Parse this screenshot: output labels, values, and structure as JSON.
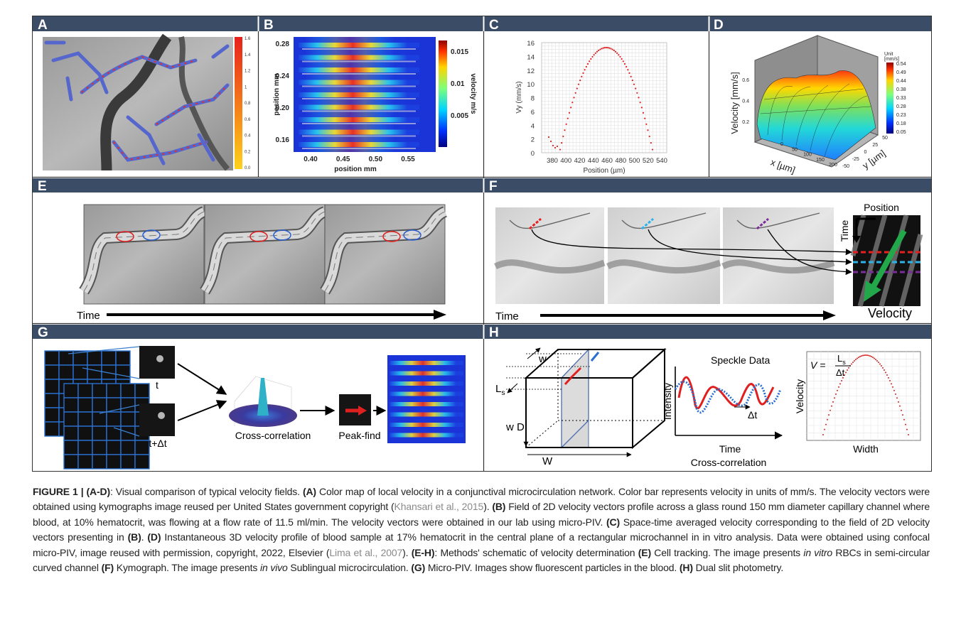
{
  "panel_labels": [
    "A",
    "B",
    "C",
    "D",
    "E",
    "F",
    "G",
    "H"
  ],
  "panel_a": {
    "colorbar_ticks": [
      "1.6",
      "1.4",
      "1.2",
      "1",
      "0.8",
      "0.6",
      "0.4",
      "0.2",
      "0.0"
    ]
  },
  "panel_b": {
    "x_label": "position mm",
    "y_label": "position mm",
    "x_ticks": [
      "0.40",
      "0.45",
      "0.50",
      "0.55"
    ],
    "y_ticks": [
      "0.28",
      "0.24",
      "0.20",
      "0.16"
    ],
    "colorbar_label": "velocity m/s",
    "colorbar_ticks": [
      "0.015",
      "0.01",
      "0.005"
    ]
  },
  "panel_c": {
    "x_label": "Position (µm)",
    "y_label": "Vy (mm/s)",
    "x_ticks": [
      "380",
      "400",
      "420",
      "440",
      "460",
      "480",
      "500",
      "520",
      "540"
    ],
    "y_ticks": [
      "16",
      "14",
      "12",
      "10",
      "8",
      "6",
      "4",
      "2",
      "0"
    ]
  },
  "panel_d": {
    "z_label": "Velocity [mm/s]",
    "x_label": "x [µm]",
    "y_label": "y [µm]",
    "unit_title": "Unit",
    "unit": "[mm/s]",
    "z_ticks": [
      "0.6",
      "0.4",
      "0.2"
    ],
    "x_ticks": [
      "0",
      "50",
      "100",
      "150",
      "200"
    ],
    "y_ticks": [
      "50",
      "25",
      "0",
      "-25",
      "-50"
    ],
    "colorbar_ticks": [
      "0.54",
      "0.49",
      "0.44",
      "0.38",
      "0.33",
      "0.28",
      "0.23",
      "0.18",
      "0.05"
    ]
  },
  "panel_e": {
    "axis_label": "Time"
  },
  "panel_f": {
    "axis_label": "Time",
    "kymo_position": "Position",
    "kymo_time": "Time",
    "kymo_velocity": "Velocity"
  },
  "panel_g": {
    "frame_1": "t",
    "frame_2": "t+Δt",
    "step_1": "Cross-correlation",
    "step_2": "Peak-find"
  },
  "panel_h": {
    "length_main": "L",
    "length_sub": "s",
    "window_1": "w",
    "window_2": "w",
    "depth": "D",
    "width": "W",
    "speckle_title": "Speckle Data",
    "speckle_y": "Intensity",
    "speckle_x": "Time",
    "speckle_caption": "Cross-correlation",
    "delay": "Δt",
    "velocity_y": "Velocity",
    "velocity_x": "Width",
    "formula_lhs": "V =",
    "formula_num_main": "L",
    "formula_num_sub": "s",
    "formula_den": "Δt"
  },
  "caption": [
    {
      "text": "FIGURE 1 | (A-D)",
      "style": "bold"
    },
    {
      "text": ": Visual comparison of typical velocity fields. ",
      "style": "plain"
    },
    {
      "text": "(A)",
      "style": "bold"
    },
    {
      "text": " Color map of local velocity in a conjunctival microcirculation network. Color bar represents velocity in units of mm/s. The velocity vectors were obtained using kymographs image reused per United States government copyright (",
      "style": "plain"
    },
    {
      "text": "Khansari et al., 2015",
      "style": "link"
    },
    {
      "text": "). ",
      "style": "plain"
    },
    {
      "text": "(B)",
      "style": "bold"
    },
    {
      "text": " Field of 2D velocity vectors profile across a glass round 150 mm diameter capillary channel where blood, at 10% hematocrit, was flowing at a flow rate of 11.5 ml/min. The velocity vectors were obtained in our lab using micro-PIV. ",
      "style": "plain"
    },
    {
      "text": "(C)",
      "style": "bold"
    },
    {
      "text": " Space-time averaged velocity corresponding to the field of 2D velocity vectors presenting in ",
      "style": "plain"
    },
    {
      "text": "(B)",
      "style": "bold"
    },
    {
      "text": ". ",
      "style": "plain"
    },
    {
      "text": "(D)",
      "style": "bold"
    },
    {
      "text": " Instantaneous 3D velocity profile of blood sample at 17% hematocrit in the central plane of a rectangular microchannel in in vitro analysis. Data were obtained using confocal micro-PIV, image reused with permission, copyright, 2022, Elsevier (",
      "style": "plain"
    },
    {
      "text": "Lima et al., 2007",
      "style": "link"
    },
    {
      "text": "). ",
      "style": "plain"
    },
    {
      "text": "(E-H)",
      "style": "bold"
    },
    {
      "text": ": Methods' schematic of velocity determination ",
      "style": "plain"
    },
    {
      "text": "(E)",
      "style": "bold"
    },
    {
      "text": " Cell tracking. The image presents ",
      "style": "plain"
    },
    {
      "text": "in vitro",
      "style": "italic"
    },
    {
      "text": " RBCs in semi-circular curved channel ",
      "style": "plain"
    },
    {
      "text": "(F)",
      "style": "bold"
    },
    {
      "text": " Kymograph. The image presents ",
      "style": "plain"
    },
    {
      "text": "in vivo",
      "style": "italic"
    },
    {
      "text": " Sublingual microcirculation. ",
      "style": "plain"
    },
    {
      "text": "(G)",
      "style": "bold"
    },
    {
      "text": " Micro-PIV. Images show fluorescent particles in the blood. ",
      "style": "plain"
    },
    {
      "text": "(H)",
      "style": "bold"
    },
    {
      "text": " Dual slit photometry.",
      "style": "plain"
    }
  ]
}
